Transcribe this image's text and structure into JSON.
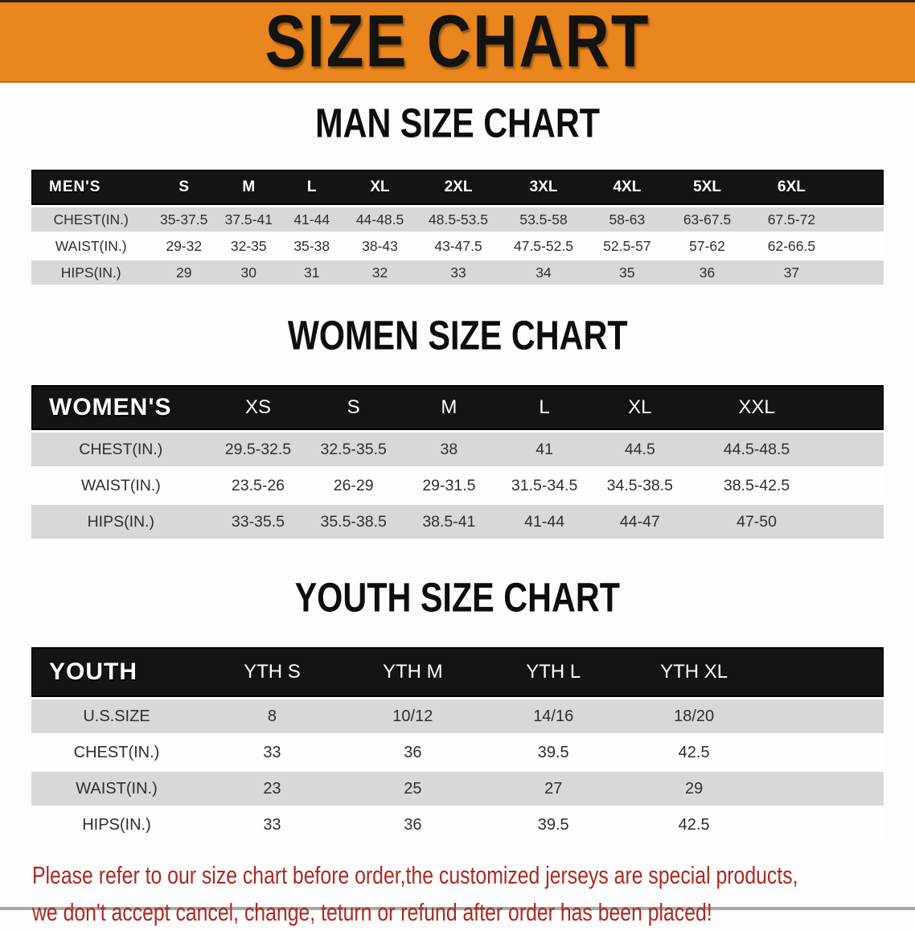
{
  "banner": {
    "title": "SIZE CHART"
  },
  "sections": [
    {
      "heading": "MAN SIZE CHART",
      "table": {
        "label": "MEN'S",
        "columns": [
          "S",
          "M",
          "L",
          "XL",
          "2XL",
          "3XL",
          "4XL",
          "5XL",
          "6XL"
        ],
        "rows": [
          {
            "label": "CHEST(IN.)",
            "values": [
              "35-37.5",
              "37.5-41",
              "41-44",
              "44-48.5",
              "48.5-53.5",
              "53.5-58",
              "58-63",
              "63-67.5",
              "67.5-72"
            ]
          },
          {
            "label": "WAIST(IN.)",
            "values": [
              "29-32",
              "32-35",
              "35-38",
              "38-43",
              "43-47.5",
              "47.5-52.5",
              "52.5-57",
              "57-62",
              "62-66.5"
            ]
          },
          {
            "label": "HIPS(IN.)",
            "values": [
              "29",
              "30",
              "31",
              "32",
              "33",
              "34",
              "35",
              "36",
              "37"
            ]
          }
        ]
      }
    },
    {
      "heading": "WOMEN SIZE CHART",
      "table": {
        "label": "WOMEN'S",
        "columns": [
          "XS",
          "S",
          "M",
          "L",
          "XL",
          "XXL"
        ],
        "rows": [
          {
            "label": "CHEST(IN.)",
            "values": [
              "29.5-32.5",
              "32.5-35.5",
              "38",
              "41",
              "44.5",
              "44.5-48.5"
            ]
          },
          {
            "label": "WAIST(IN.)",
            "values": [
              "23.5-26",
              "26-29",
              "29-31.5",
              "31.5-34.5",
              "34.5-38.5",
              "38.5-42.5"
            ]
          },
          {
            "label": "HIPS(IN.)",
            "values": [
              "33-35.5",
              "35.5-38.5",
              "38.5-41",
              "41-44",
              "44-47",
              "47-50"
            ]
          }
        ]
      }
    },
    {
      "heading": "YOUTH SIZE CHART",
      "table": {
        "label": "YOUTH",
        "columns": [
          "YTH S",
          "YTH M",
          "YTH L",
          "YTH XL"
        ],
        "rows": [
          {
            "label": "U.S.SIZE",
            "values": [
              "8",
              "10/12",
              "14/16",
              "18/20"
            ]
          },
          {
            "label": "CHEST(IN.)",
            "values": [
              "33",
              "36",
              "39.5",
              "42.5"
            ]
          },
          {
            "label": "WAIST(IN.)",
            "values": [
              "23",
              "25",
              "27",
              "29"
            ]
          },
          {
            "label": "HIPS(IN.)",
            "values": [
              "33",
              "36",
              "39.5",
              "42.5"
            ]
          }
        ]
      }
    }
  ],
  "footer": {
    "line1": "Please refer to our size chart before order,the customized jerseys are special products,",
    "line2": "we don't accept cancel, change, teturn or refund after order has been placed!"
  },
  "colors": {
    "banner_orange": "#e9861d",
    "header_black": "#161413",
    "stripe_gray": "#d8d8d8",
    "footer_red": "#ac2a21"
  }
}
